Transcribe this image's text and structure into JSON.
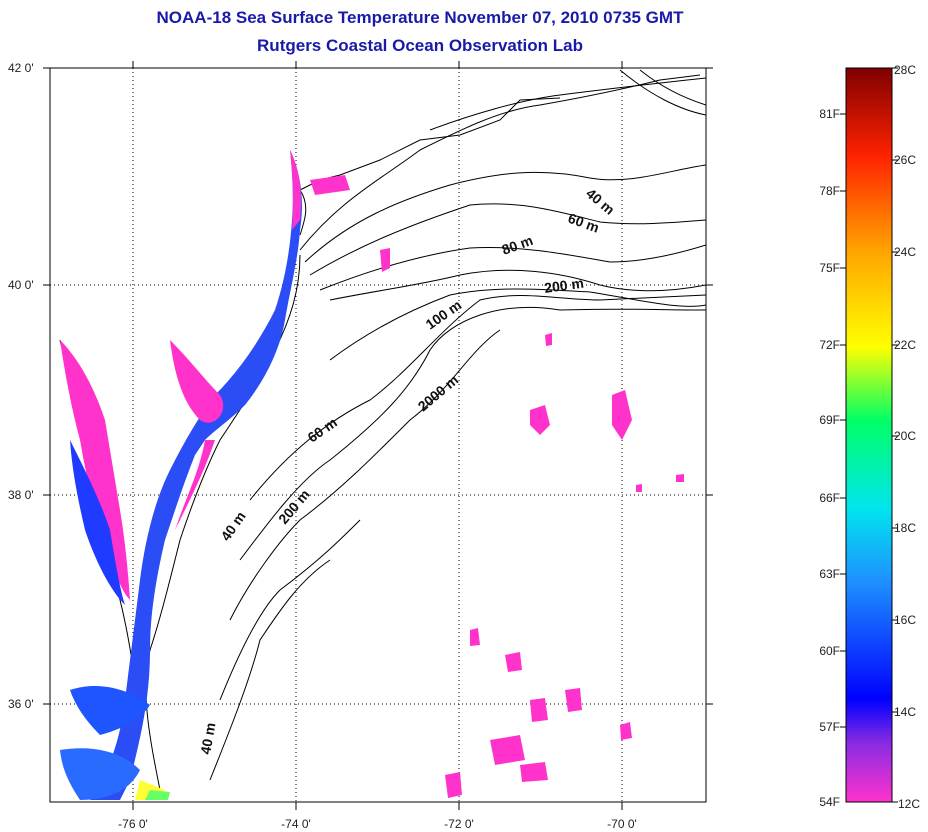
{
  "title": {
    "line1": "NOAA-18 Sea Surface Temperature November 07, 2010 0735 GMT",
    "line2": "Rutgers Coastal Ocean Observation Lab"
  },
  "lat_labels": [
    "42 0'",
    "40 0'",
    "38 0'",
    "36 0'"
  ],
  "lon_labels": [
    "-76 0'",
    "-74 0'",
    "-72 0'",
    "-70 0'"
  ],
  "depth_labels": [
    "40 m",
    "60 m",
    "80 m",
    "200 m",
    "100 m",
    "2000 m",
    "60 m",
    "40 m",
    "200 m",
    "40 m"
  ],
  "colorbar": {
    "fahrenheit": [
      "81F",
      "78F",
      "75F",
      "72F",
      "69F",
      "66F",
      "63F",
      "60F",
      "57F",
      "54F"
    ],
    "celsius": [
      "28C",
      "26C",
      "24C",
      "22C",
      "20C",
      "18C",
      "16C",
      "14C",
      "12C"
    ],
    "colors": [
      "#ff33cc",
      "#8a2be2",
      "#0000ff",
      "#1e90ff",
      "#00e5ee",
      "#00ff66",
      "#ffff00",
      "#ffa500",
      "#ff2200",
      "#800000"
    ]
  }
}
